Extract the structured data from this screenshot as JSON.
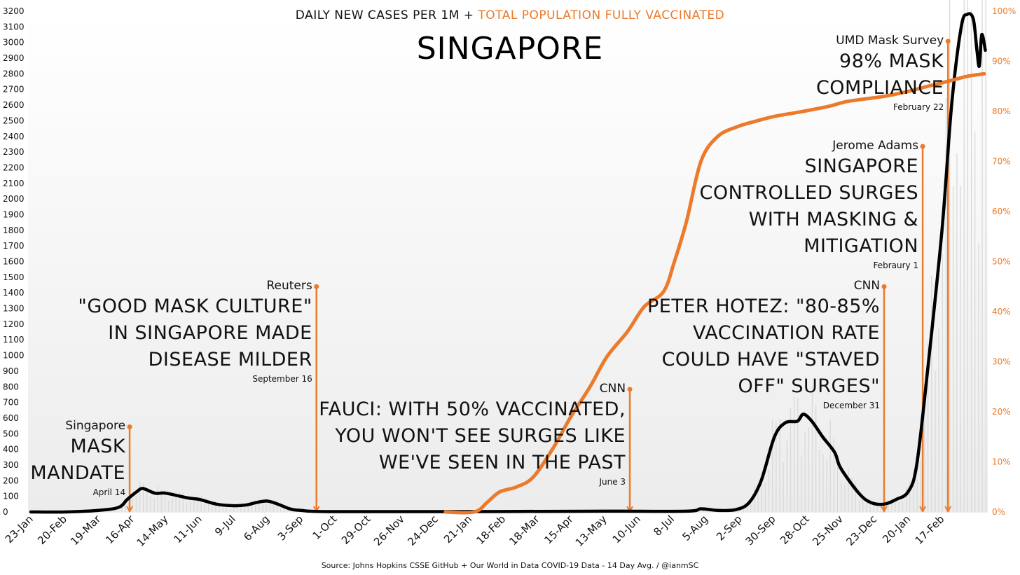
{
  "header": {
    "title_part1": "DAILY NEW CASES PER 1M +",
    "title_part2": "TOTAL POPULATION FULLY VACCINATED",
    "country": "SINGAPORE"
  },
  "footer": {
    "source": "Source: Johns Hopkins CSSE GitHub  + Our World in Data COVID-19 Data - 14 Day Avg. / @ianmSC"
  },
  "colors": {
    "cases": "#000000",
    "vaccinated": "#ec7a2a",
    "bars": "#d9d9d9",
    "background_top": "#ffffff",
    "background_bottom": "#ececec"
  },
  "chart_data": {
    "type": "line",
    "title": "DAILY NEW CASES PER 1M + TOTAL POPULATION FULLY VACCINATED",
    "subtitle": "SINGAPORE",
    "x_ticks": [
      "23-Jan",
      "20-Feb",
      "19-Mar",
      "16-Apr",
      "14-May",
      "11-Jun",
      "9-Jul",
      "6-Aug",
      "3-Sep",
      "1-Oct",
      "29-Oct",
      "26-Nov",
      "24-Dec",
      "21-Jan",
      "18-Feb",
      "18-Mar",
      "15-Apr",
      "13-May",
      "10-Jun",
      "8-Jul",
      "5-Aug",
      "2-Sep",
      "30-Sep",
      "28-Oct",
      "25-Nov",
      "23-Dec",
      "20-Jan",
      "17-Feb"
    ],
    "y_left": {
      "min": 0,
      "max": 3200,
      "step": 100
    },
    "y_right": {
      "min": 0,
      "max": 100,
      "step": 10,
      "ticks": [
        "0%",
        "10%",
        "20%",
        "30%",
        "40%",
        "50%",
        "60%",
        "70%",
        "80%",
        "90%",
        "100%"
      ]
    },
    "grid": false,
    "series": [
      {
        "axis": "left",
        "x": [
          "2020-01-23",
          "2020-02-20",
          "2020-03-19",
          "2020-04-05",
          "2020-04-12",
          "2020-04-20",
          "2020-04-25",
          "2020-05-05",
          "2020-05-14",
          "2020-06-01",
          "2020-06-11",
          "2020-06-25",
          "2020-07-09",
          "2020-07-20",
          "2020-07-28",
          "2020-08-06",
          "2020-08-15",
          "2020-08-25",
          "2020-09-03",
          "2020-10-01",
          "2021-02-18",
          "2021-05-13",
          "2021-07-20",
          "2021-08-01",
          "2021-08-15",
          "2021-08-30",
          "2021-09-10",
          "2021-09-20",
          "2021-10-01",
          "2021-10-10",
          "2021-10-20",
          "2021-10-25",
          "2021-11-01",
          "2021-11-10",
          "2021-11-20",
          "2021-11-25",
          "2021-12-10",
          "2021-12-20",
          "2021-12-31",
          "2022-01-10",
          "2022-01-20",
          "2022-01-27",
          "2022-02-05",
          "2022-02-17",
          "2022-02-25",
          "2022-03-05",
          "2022-03-10",
          "2022-03-15",
          "2022-03-18",
          "2022-03-20",
          "2022-03-22",
          "2022-03-25"
        ],
        "values": [
          0,
          0,
          10,
          30,
          80,
          130,
          150,
          120,
          120,
          90,
          80,
          50,
          40,
          45,
          60,
          70,
          50,
          20,
          10,
          2,
          3,
          5,
          5,
          20,
          10,
          15,
          60,
          200,
          480,
          570,
          580,
          625,
          580,
          480,
          380,
          280,
          120,
          60,
          50,
          80,
          130,
          300,
          900,
          1800,
          2600,
          3100,
          3180,
          3150,
          2950,
          2850,
          3050,
          2950
        ]
      },
      {
        "axis": "right",
        "x": [
          "2021-01-01",
          "2021-01-25",
          "2021-02-05",
          "2021-02-15",
          "2021-03-01",
          "2021-03-15",
          "2021-04-01",
          "2021-04-15",
          "2021-05-01",
          "2021-05-15",
          "2021-06-01",
          "2021-06-15",
          "2021-07-01",
          "2021-07-10",
          "2021-07-20",
          "2021-08-01",
          "2021-08-15",
          "2021-09-01",
          "2021-09-15",
          "2021-10-01",
          "2021-10-25",
          "2021-11-15",
          "2021-12-01",
          "2021-12-31",
          "2022-01-20",
          "2022-02-05",
          "2022-02-22",
          "2022-03-10",
          "2022-03-24"
        ],
        "values": [
          0,
          0,
          2,
          4,
          5,
          7,
          13,
          19,
          25,
          31,
          36,
          41,
          44,
          50,
          58,
          70,
          75,
          77,
          78,
          79,
          80,
          81,
          82,
          83,
          84,
          85,
          86,
          87,
          87.5
        ]
      }
    ],
    "annotations": [
      {
        "source": "Singapore",
        "headline_lines": [
          "MASK",
          "MANDATE"
        ],
        "date": "April 14",
        "x": "2020-04-14",
        "top_pct": 17
      },
      {
        "source": "Reuters",
        "headline_lines": [
          "\"GOOD MASK CULTURE\"",
          "IN SINGAPORE MADE",
          "DISEASE MILDER"
        ],
        "date": "September 16",
        "x": "2020-09-16",
        "top_pct": 45
      },
      {
        "source": "CNN",
        "headline_lines": [
          "FAUCI: WITH 50% VACCINATED,",
          "YOU WON'T SEE SURGES LIKE",
          "WE'VE SEEN IN THE PAST"
        ],
        "date": "June 3",
        "x": "2021-06-03",
        "top_pct": 24.5
      },
      {
        "source": "CNN",
        "headline_lines": [
          "PETER HOTEZ: \"80-85%",
          "VACCINATION RATE",
          "COULD HAVE \"STAVED",
          "OFF\" SURGES\""
        ],
        "date": "December 31",
        "x": "2021-12-31",
        "top_pct": 45
      },
      {
        "source": "Jerome Adams",
        "headline_lines": [
          "SINGAPORE",
          "CONTROLLED SURGES",
          "WITH MASKING &",
          "MITIGATION"
        ],
        "date": "Febraury 1",
        "x": "2022-02-01",
        "top_pct": 73
      },
      {
        "source": "UMD Mask Survey",
        "headline_lines": [
          "98% MASK",
          "COMPLIANCE"
        ],
        "date": "February 22",
        "x": "2022-02-22",
        "top_pct": 94
      }
    ]
  }
}
